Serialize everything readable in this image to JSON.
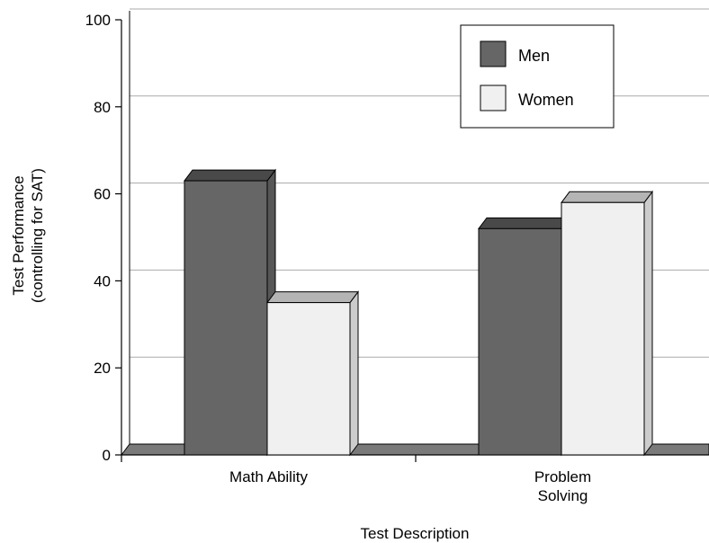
{
  "chart_data": {
    "type": "bar",
    "categories": [
      "Math Ability",
      "Problem\nSolving"
    ],
    "series": [
      {
        "name": "Men",
        "values": [
          63,
          52
        ],
        "color": "#666666"
      },
      {
        "name": "Women",
        "values": [
          35,
          58
        ],
        "color": "#f0f0f0"
      }
    ],
    "xlabel": "Test Description",
    "ylabel": "Test Performance\n(controlling for SAT)",
    "ylim": [
      0,
      100
    ],
    "yticks": [
      0,
      20,
      40,
      60,
      80,
      100
    ],
    "grid": true,
    "legend": "top-right",
    "style": "3d-bar"
  }
}
